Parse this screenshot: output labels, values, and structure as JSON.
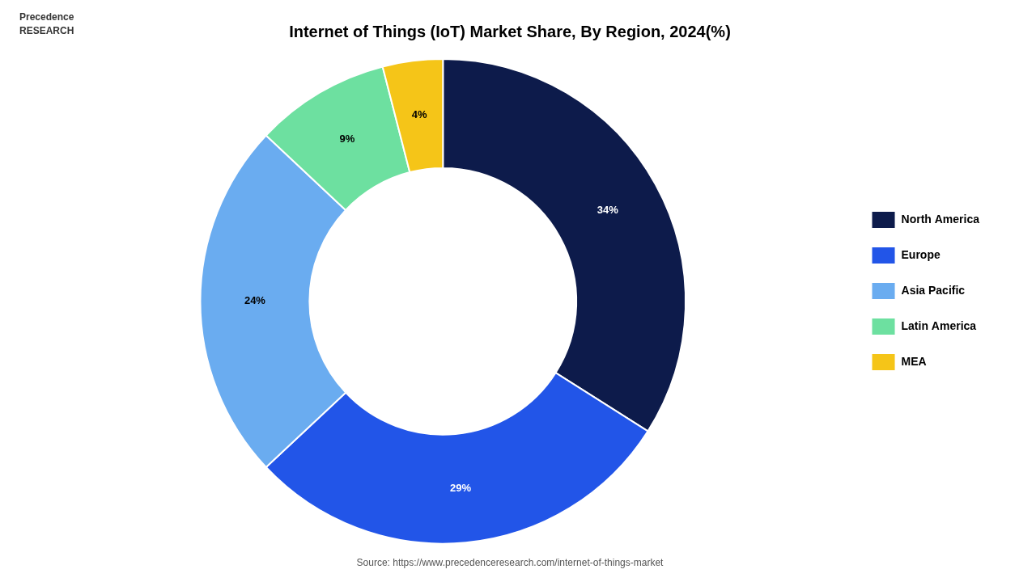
{
  "chart_data": {
    "type": "doughnut",
    "title": "Internet of Things (IoT) Market Share, By Region, 2024(%)",
    "annotations": [
      "Source: https://www.precedenceresearch.com/internet-of-things-market",
      "Precedence\nRESEARCH"
    ],
    "categories": [
      "North America",
      "Europe",
      "Asia Pacific",
      "Latin America",
      "MEA"
    ],
    "values": [
      34,
      29,
      24,
      9,
      4
    ],
    "value_labels": [
      "34%",
      "29%",
      "24%",
      "9%",
      "4%"
    ],
    "colors": [
      "#0d1b4b",
      "#2255e8",
      "#6aacf0",
      "#6de0a0",
      "#f5c518"
    ],
    "legend": "right",
    "data_labels": true
  }
}
